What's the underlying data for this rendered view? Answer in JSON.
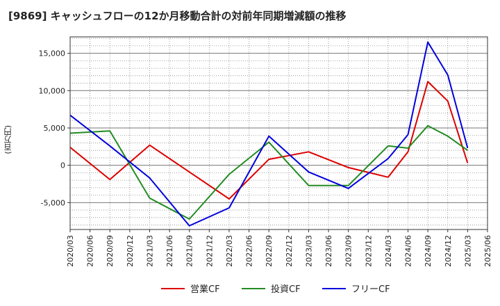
{
  "chart_data": {
    "type": "line",
    "title": "[9869]  キャッシュフローの12か月移動合計の対前年同期増減額の推移",
    "xlabel": "",
    "ylabel": "(百万円)",
    "categories": [
      "2020/03",
      "2020/06",
      "2020/09",
      "2020/12",
      "2021/03",
      "2021/06",
      "2021/09",
      "2021/12",
      "2022/03",
      "2022/06",
      "2022/09",
      "2022/12",
      "2023/03",
      "2023/06",
      "2023/09",
      "2023/12",
      "2024/03",
      "2024/06",
      "2024/09",
      "2024/12",
      "2025/03",
      "2025/06"
    ],
    "y_ticks": [
      -5000,
      0,
      5000,
      10000,
      15000
    ],
    "y_tick_labels": [
      "-5,000",
      "0",
      "5,000",
      "10,000",
      "15,000"
    ],
    "ylim": [
      -8600,
      17200
    ],
    "grid": true,
    "legend_position": "bottom",
    "series": [
      {
        "name": "営業CF",
        "color": "#dd0000",
        "values": [
          2400,
          null,
          -1900,
          null,
          2700,
          null,
          null,
          null,
          -4500,
          null,
          800,
          null,
          1800,
          null,
          -300,
          null,
          -1600,
          1800,
          11200,
          8600,
          300,
          null
        ]
      },
      {
        "name": "投資CF",
        "color": "#228b22",
        "values": [
          4300,
          null,
          4600,
          null,
          -4400,
          null,
          -7200,
          null,
          -1200,
          null,
          3100,
          null,
          -2700,
          null,
          -2700,
          null,
          2600,
          2300,
          5300,
          3900,
          2000,
          null
        ]
      },
      {
        "name": "フリーCF",
        "color": "#0000dd",
        "values": [
          6700,
          null,
          2600,
          null,
          -1700,
          null,
          -8100,
          null,
          -5700,
          null,
          3900,
          null,
          -900,
          null,
          -3100,
          null,
          900,
          4100,
          16500,
          12100,
          2300,
          null
        ]
      }
    ]
  }
}
